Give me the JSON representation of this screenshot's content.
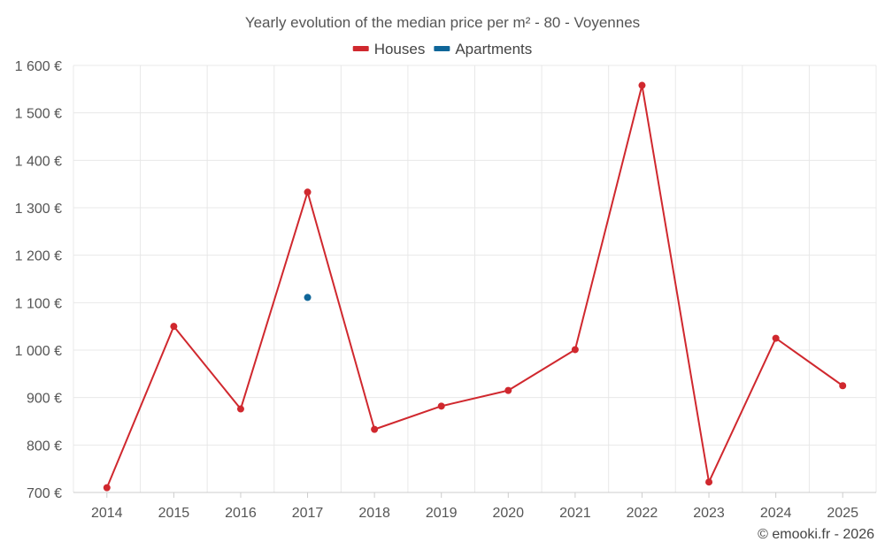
{
  "chart_data": {
    "type": "line",
    "title": "Yearly evolution of the median price per m² - 80 - Voyennes",
    "x": [
      "2014",
      "2015",
      "2016",
      "2017",
      "2018",
      "2019",
      "2020",
      "2021",
      "2022",
      "2023",
      "2024",
      "2025"
    ],
    "series": [
      {
        "name": "Houses",
        "color": "#d0282e",
        "values": [
          710,
          1050,
          876,
          1333,
          833,
          882,
          915,
          1001,
          1558,
          722,
          1025,
          925
        ]
      },
      {
        "name": "Apartments",
        "color": "#0f6699",
        "values": [
          null,
          null,
          null,
          1111,
          null,
          null,
          null,
          null,
          null,
          null,
          null,
          null
        ]
      }
    ],
    "yticks": [
      700,
      800,
      900,
      1000,
      1100,
      1200,
      1300,
      1400,
      1500,
      1600
    ],
    "ytick_labels": [
      "700 €",
      "800 €",
      "900 €",
      "1 000 €",
      "1 100 €",
      "1 200 €",
      "1 300 €",
      "1 400 €",
      "1 500 €",
      "1 600 €"
    ],
    "ylim": [
      700,
      1600
    ],
    "xlabel": "",
    "ylabel": "",
    "grid": true,
    "legend_position": "top-center"
  },
  "credit": "© emooki.fr - 2026"
}
